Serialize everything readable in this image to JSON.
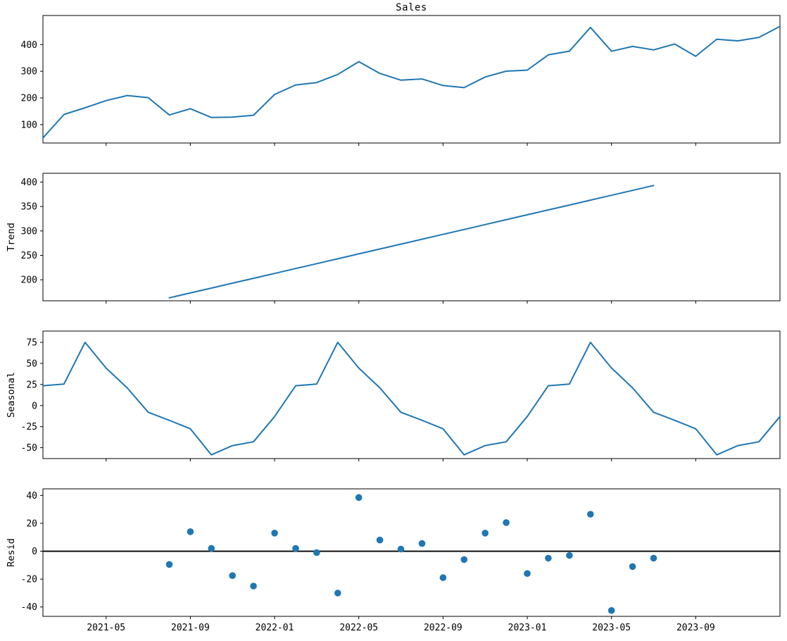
{
  "title": "Sales",
  "colors": {
    "series": "#1f77b4",
    "zero_line": "#000000",
    "spine": "#000000",
    "text": "#000000",
    "background": "#ffffff"
  },
  "chart_data": {
    "type": "line",
    "title": "Sales",
    "description": "Seasonal decomposition: observed, trend, seasonal, residual",
    "x_axis": {
      "n_points": 36,
      "start_month": "2021-02",
      "end_month": "2024-01",
      "tick_indices": [
        3,
        7,
        11,
        15,
        19,
        23,
        27,
        31
      ],
      "tick_labels": [
        "2021-05",
        "2021-09",
        "2022-01",
        "2022-05",
        "2022-09",
        "2023-01",
        "2023-05",
        "2023-09"
      ]
    },
    "panels": [
      {
        "name": "observed",
        "type": "line",
        "ylabel": "",
        "ylim": [
          31,
          509
        ],
        "yticks": [
          100,
          200,
          300,
          400
        ],
        "x_start_index": 0,
        "values": [
          50,
          138,
          163,
          190,
          209,
          201,
          136,
          159.5,
          126.5,
          128,
          135,
          213,
          248.5,
          257.5,
          288,
          336,
          292,
          266.5,
          271,
          246.5,
          238.5,
          278.5,
          300.5,
          304,
          361.5,
          375.5,
          464.5,
          375,
          393,
          380,
          402,
          356,
          420,
          414,
          427,
          468
        ]
      },
      {
        "name": "trend",
        "type": "line",
        "ylabel": "Trend",
        "ylim": [
          157,
          418
        ],
        "yticks": [
          200,
          250,
          300,
          350,
          400
        ],
        "x_start_index": 6,
        "values": [
          163,
          173,
          183,
          193,
          203,
          213,
          223,
          233,
          243,
          253,
          263,
          273,
          283,
          293,
          303,
          313,
          323,
          333,
          343,
          353,
          363,
          373,
          383,
          393
        ]
      },
      {
        "name": "seasonal",
        "type": "line",
        "ylabel": "Seasonal",
        "ylim": [
          -62.9,
          88.4
        ],
        "yticks": [
          -50,
          -25,
          0,
          25,
          50,
          75
        ],
        "x_start_index": 0,
        "values": [
          23.5,
          25.5,
          75,
          44.5,
          21,
          -8,
          -17.5,
          -27.5,
          -58.5,
          -47.5,
          -43,
          -13,
          23.5,
          25.5,
          75,
          44.5,
          21,
          -8,
          -17.5,
          -27.5,
          -58.5,
          -47.5,
          -43,
          -13,
          23.5,
          25.5,
          75,
          44.5,
          21,
          -8,
          -17.5,
          -27.5,
          -58.5,
          -47.5,
          -43,
          -13
        ]
      },
      {
        "name": "resid",
        "type": "scatter",
        "ylabel": "Resid",
        "ylim": [
          -46.7,
          44.7
        ],
        "yticks": [
          -40,
          -20,
          0,
          20,
          40
        ],
        "x_start_index": 6,
        "zero_line": 0,
        "values": [
          -9.5,
          14,
          2,
          -17.5,
          -25,
          13,
          2,
          -1,
          -30,
          38.5,
          8,
          1.5,
          5.5,
          -19,
          -6,
          13,
          20.5,
          -16,
          -5,
          -3,
          26.5,
          -42.5,
          -11,
          -5
        ]
      }
    ]
  }
}
